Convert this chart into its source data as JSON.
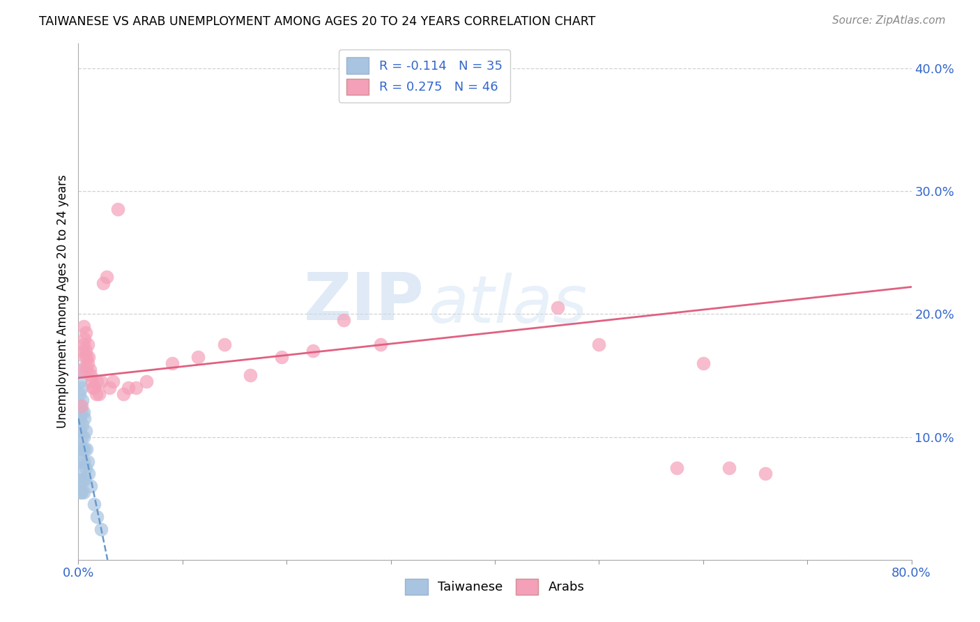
{
  "title": "TAIWANESE VS ARAB UNEMPLOYMENT AMONG AGES 20 TO 24 YEARS CORRELATION CHART",
  "source": "Source: ZipAtlas.com",
  "ylabel": "Unemployment Among Ages 20 to 24 years",
  "xlim": [
    0.0,
    0.8
  ],
  "ylim": [
    0.0,
    0.42
  ],
  "xticks": [
    0.0,
    0.1,
    0.2,
    0.3,
    0.4,
    0.5,
    0.6,
    0.7,
    0.8
  ],
  "yticks": [
    0.0,
    0.1,
    0.2,
    0.3,
    0.4
  ],
  "taiwanese_color": "#a8c4e0",
  "arab_color": "#f4a0b8",
  "taiwanese_line_color": "#6699cc",
  "arab_line_color": "#e06080",
  "R_taiwanese": -0.114,
  "N_taiwanese": 35,
  "R_arab": 0.275,
  "N_arab": 46,
  "watermark_zip": "ZIP",
  "watermark_atlas": "atlas",
  "background_color": "#ffffff",
  "grid_color": "#cccccc",
  "tw_x": [
    0.001,
    0.001,
    0.001,
    0.001,
    0.001,
    0.002,
    0.002,
    0.002,
    0.002,
    0.002,
    0.003,
    0.003,
    0.003,
    0.003,
    0.003,
    0.004,
    0.004,
    0.004,
    0.004,
    0.005,
    0.005,
    0.005,
    0.005,
    0.006,
    0.006,
    0.006,
    0.007,
    0.007,
    0.008,
    0.009,
    0.01,
    0.012,
    0.015,
    0.018,
    0.022
  ],
  "tw_y": [
    0.155,
    0.135,
    0.115,
    0.09,
    0.065,
    0.145,
    0.125,
    0.105,
    0.08,
    0.055,
    0.14,
    0.12,
    0.1,
    0.075,
    0.055,
    0.13,
    0.11,
    0.09,
    0.065,
    0.12,
    0.1,
    0.08,
    0.055,
    0.115,
    0.09,
    0.065,
    0.105,
    0.075,
    0.09,
    0.08,
    0.07,
    0.06,
    0.045,
    0.035,
    0.025
  ],
  "ar_x": [
    0.003,
    0.004,
    0.004,
    0.005,
    0.005,
    0.006,
    0.006,
    0.007,
    0.007,
    0.008,
    0.008,
    0.009,
    0.009,
    0.01,
    0.011,
    0.012,
    0.013,
    0.014,
    0.015,
    0.017,
    0.018,
    0.02,
    0.022,
    0.024,
    0.027,
    0.03,
    0.033,
    0.038,
    0.043,
    0.048,
    0.055,
    0.065,
    0.09,
    0.115,
    0.14,
    0.165,
    0.195,
    0.225,
    0.255,
    0.29,
    0.46,
    0.5,
    0.575,
    0.6,
    0.625,
    0.66
  ],
  "ar_y": [
    0.125,
    0.155,
    0.17,
    0.175,
    0.19,
    0.18,
    0.165,
    0.185,
    0.17,
    0.165,
    0.155,
    0.175,
    0.16,
    0.165,
    0.155,
    0.15,
    0.145,
    0.14,
    0.14,
    0.135,
    0.145,
    0.135,
    0.145,
    0.225,
    0.23,
    0.14,
    0.145,
    0.285,
    0.135,
    0.14,
    0.14,
    0.145,
    0.16,
    0.165,
    0.175,
    0.15,
    0.165,
    0.17,
    0.195,
    0.175,
    0.205,
    0.175,
    0.075,
    0.16,
    0.075,
    0.07
  ]
}
